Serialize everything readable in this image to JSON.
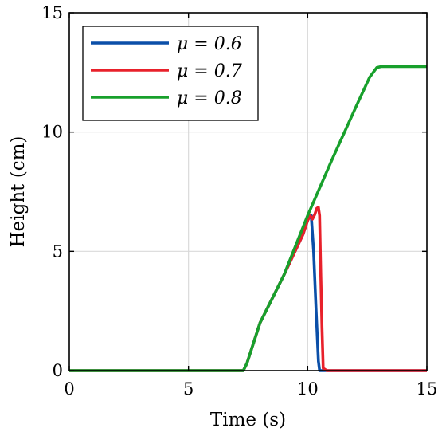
{
  "chart_data": {
    "type": "line",
    "title": "",
    "xlabel": "Time (s)",
    "ylabel": "Height (cm)",
    "xlim": [
      0,
      15
    ],
    "ylim": [
      0,
      15
    ],
    "xticks": [
      0,
      5,
      10,
      15
    ],
    "yticks": [
      0,
      5,
      10,
      15
    ],
    "x_tick_labels": [
      "0",
      "5",
      "10",
      "15"
    ],
    "y_tick_labels": [
      "0",
      "5",
      "10",
      "15"
    ],
    "grid": true,
    "legend_position": "top-left",
    "series": [
      {
        "name": "μ = 0.6",
        "color": "#0b4fa8",
        "x": [
          0,
          7.3,
          7.45,
          8.0,
          9.0,
          9.8,
          10.0,
          10.1,
          10.15,
          10.25,
          10.35,
          10.45,
          10.5,
          10.6,
          11.0,
          15.0
        ],
        "y": [
          0,
          0,
          0.3,
          2.0,
          4.0,
          5.7,
          6.3,
          6.5,
          6.5,
          5.0,
          2.6,
          0.4,
          0,
          0,
          0,
          0
        ]
      },
      {
        "name": "μ = 0.7",
        "color": "#e8212b",
        "x": [
          0,
          7.3,
          7.45,
          8.0,
          9.0,
          9.8,
          10.0,
          10.1,
          10.2,
          10.3,
          10.38,
          10.45,
          10.5,
          10.55,
          10.6,
          10.65,
          10.8,
          15.0
        ],
        "y": [
          0,
          0,
          0.3,
          2.0,
          4.0,
          5.7,
          6.3,
          6.5,
          6.35,
          6.55,
          6.8,
          6.85,
          6.5,
          4.0,
          1.8,
          0.1,
          0,
          0
        ],
        "opacity": 1
      },
      {
        "name": "μ = 0.8",
        "color": "#18a02c",
        "x": [
          0,
          7.3,
          7.45,
          8.0,
          9.0,
          10.0,
          11.0,
          12.0,
          12.6,
          12.9,
          13.1,
          15.0
        ],
        "y": [
          0,
          0,
          0.3,
          2.0,
          4.0,
          6.5,
          8.8,
          11.0,
          12.3,
          12.7,
          12.75,
          12.75
        ]
      }
    ]
  }
}
